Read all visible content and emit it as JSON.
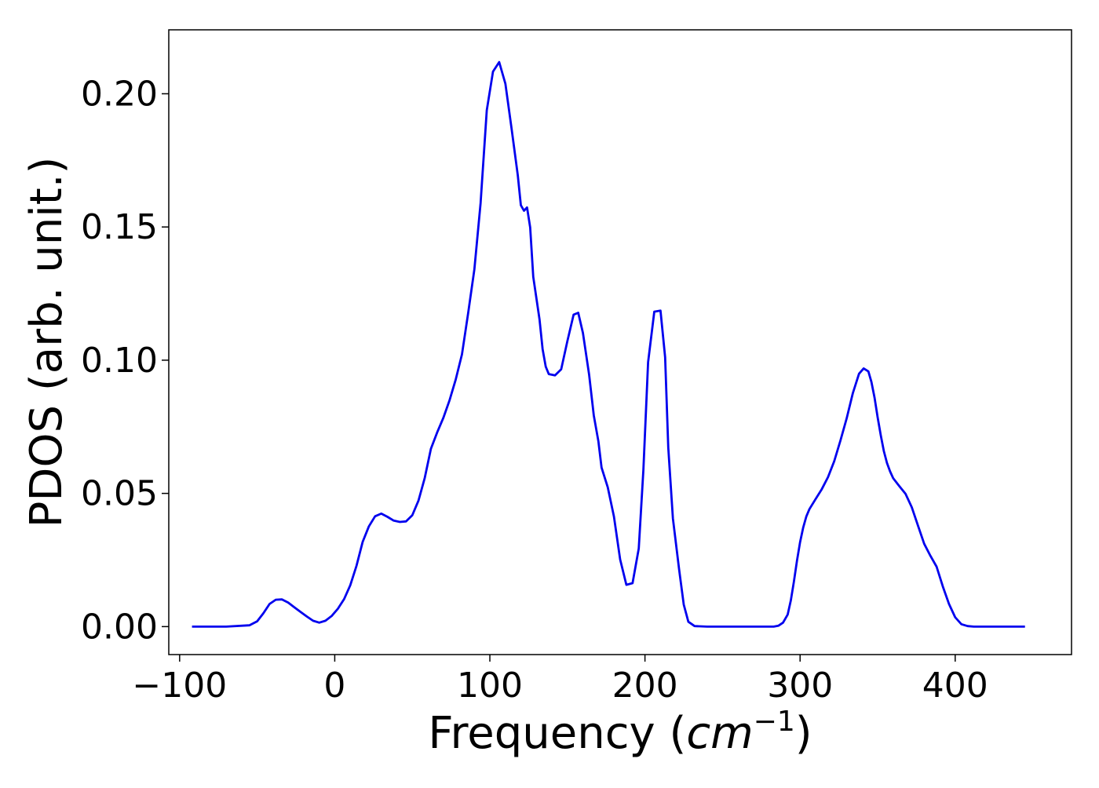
{
  "chart_data": {
    "type": "line",
    "title": "",
    "xlabel": "Frequency (",
    "xlabel_math_base": "cm",
    "xlabel_math_sup": "−1",
    "xlabel_close": ")",
    "ylabel": "PDOS (arb. unit.)",
    "xlim": [
      -107,
      475
    ],
    "ylim": [
      -0.0105,
      0.224
    ],
    "xticks": [
      -100,
      0,
      100,
      200,
      300,
      400
    ],
    "xtick_labels": [
      "−100",
      "0",
      "100",
      "200",
      "300",
      "400"
    ],
    "yticks": [
      0.0,
      0.05,
      0.1,
      0.15,
      0.2
    ],
    "ytick_labels": [
      "0.00",
      "0.05",
      "0.10",
      "0.15",
      "0.20"
    ],
    "grid": false,
    "legend": "none",
    "series": [
      {
        "color": "#0000ee",
        "x": [
          -92,
          -70,
          -55,
          -50,
          -46,
          -42,
          -38,
          -34,
          -30,
          -26,
          -22,
          -18,
          -14,
          -10,
          -6,
          -2,
          2,
          6,
          10,
          14,
          18,
          22,
          26,
          30,
          34,
          38,
          42,
          46,
          50,
          54,
          58,
          62,
          66,
          70,
          74,
          78,
          82,
          86,
          90,
          94,
          98,
          102,
          106,
          110,
          114,
          118,
          120,
          122,
          124,
          126,
          128,
          132,
          134,
          136,
          138,
          142,
          146,
          150,
          154,
          157,
          160,
          164,
          167,
          170,
          172,
          176,
          180,
          184,
          188,
          192,
          196,
          199,
          202,
          206,
          210,
          213,
          215,
          218,
          222,
          225,
          228,
          232,
          240,
          260,
          283,
          286,
          289,
          292,
          294,
          296,
          298,
          300,
          302,
          304,
          306,
          310,
          314,
          318,
          322,
          326,
          330,
          334,
          338,
          341,
          344,
          346,
          348,
          350,
          352,
          354,
          356,
          358,
          360,
          364,
          368,
          372,
          376,
          380,
          384,
          388,
          392,
          396,
          400,
          404,
          408,
          412,
          416,
          445
        ],
        "y": [
          0.0,
          0.0,
          0.0005,
          0.002,
          0.005,
          0.0085,
          0.0101,
          0.0102,
          0.009,
          0.0072,
          0.0055,
          0.0038,
          0.0022,
          0.0015,
          0.0022,
          0.004,
          0.0067,
          0.0103,
          0.0155,
          0.0228,
          0.0318,
          0.0376,
          0.0414,
          0.0424,
          0.0412,
          0.0398,
          0.0393,
          0.0395,
          0.0418,
          0.0473,
          0.0557,
          0.0667,
          0.0728,
          0.0783,
          0.0849,
          0.0927,
          0.1022,
          0.1177,
          0.1341,
          0.1589,
          0.1938,
          0.2083,
          0.2119,
          0.2038,
          0.1869,
          0.1694,
          0.1582,
          0.1561,
          0.1573,
          0.1498,
          0.1313,
          0.1153,
          0.1042,
          0.0976,
          0.0948,
          0.0943,
          0.0966,
          0.1072,
          0.1171,
          0.1178,
          0.1102,
          0.0945,
          0.0793,
          0.0695,
          0.0597,
          0.0523,
          0.0413,
          0.0252,
          0.0157,
          0.0163,
          0.0293,
          0.0588,
          0.0992,
          0.1182,
          0.1186,
          0.1011,
          0.0672,
          0.0406,
          0.0215,
          0.0083,
          0.0018,
          0.0002,
          0.0,
          0.0,
          0.0,
          0.0003,
          0.0015,
          0.0045,
          0.0098,
          0.0168,
          0.0248,
          0.0317,
          0.0372,
          0.0413,
          0.0441,
          0.0479,
          0.0516,
          0.0561,
          0.0621,
          0.0698,
          0.0781,
          0.0876,
          0.0949,
          0.0969,
          0.0958,
          0.0918,
          0.0859,
          0.0786,
          0.0718,
          0.0659,
          0.0614,
          0.0583,
          0.0557,
          0.0527,
          0.0498,
          0.0448,
          0.0379,
          0.0311,
          0.0266,
          0.0225,
          0.0151,
          0.0085,
          0.0035,
          0.0009,
          0.0002,
          0.0,
          0.0,
          0.0
        ]
      }
    ]
  }
}
